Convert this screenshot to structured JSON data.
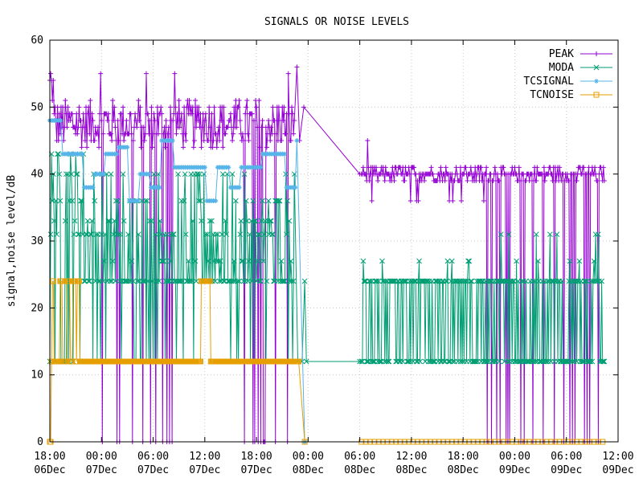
{
  "chart_data": {
    "type": "line",
    "title": "SIGNALS OR NOISE LEVELS",
    "ylabel": "signal,noise level/dB",
    "xlabel": "",
    "ylim": [
      0,
      60
    ],
    "yticks": [
      0,
      10,
      20,
      30,
      40,
      50,
      60
    ],
    "xlim_hours": [
      0,
      66
    ],
    "xticks": [
      {
        "h": 0,
        "time": "18:00",
        "date": "06Dec"
      },
      {
        "h": 6,
        "time": "00:00",
        "date": "07Dec"
      },
      {
        "h": 12,
        "time": "06:00",
        "date": "07Dec"
      },
      {
        "h": 18,
        "time": "12:00",
        "date": "07Dec"
      },
      {
        "h": 24,
        "time": "18:00",
        "date": "07Dec"
      },
      {
        "h": 30,
        "time": "00:00",
        "date": "08Dec"
      },
      {
        "h": 36,
        "time": "06:00",
        "date": "08Dec"
      },
      {
        "h": 42,
        "time": "12:00",
        "date": "08Dec"
      },
      {
        "h": 48,
        "time": "18:00",
        "date": "08Dec"
      },
      {
        "h": 54,
        "time": "00:00",
        "date": "09Dec"
      },
      {
        "h": 60,
        "time": "06:00",
        "date": "09Dec"
      },
      {
        "h": 66,
        "time": "12:00",
        "date": "09Dec"
      }
    ],
    "grid": true,
    "legend_position": "top-right",
    "series": [
      {
        "name": "PEAK",
        "color": "#9400d3",
        "marker": "+"
      },
      {
        "name": "MODA",
        "color": "#009e73",
        "marker": "x"
      },
      {
        "name": "TCSIGNAL",
        "color": "#56b4e9",
        "marker": "*"
      },
      {
        "name": "TCNOISE",
        "color": "#e69f00",
        "marker": "square"
      }
    ]
  }
}
